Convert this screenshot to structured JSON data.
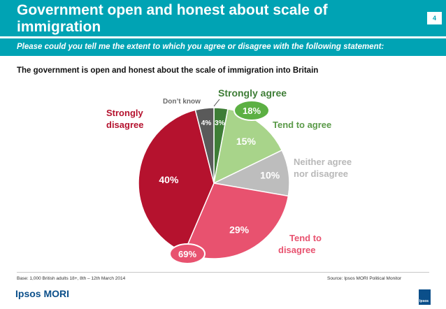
{
  "header": {
    "title": "Government open and honest about scale of immigration",
    "page_number": "4",
    "question": "Please could you tell me the extent to which you agree or disagree with the following statement:"
  },
  "statement": "The government is open and honest about the scale of immigration into Britain",
  "chart_data": {
    "type": "pie",
    "title": "The government is open and honest about the scale of immigration into Britain",
    "slices": [
      {
        "label": "Strongly agree",
        "value": 3,
        "value_label": "3%",
        "color": "#3e7d36"
      },
      {
        "label": "Tend to agree",
        "value": 15,
        "value_label": "15%",
        "color": "#a8d48a"
      },
      {
        "label": "Neither agree nor disagree",
        "value": 10,
        "value_label": "10%",
        "color": "#bdbdbd"
      },
      {
        "label": "Tend to disagree",
        "value": 29,
        "value_label": "29%",
        "color": "#e8526f"
      },
      {
        "label": "Strongly disagree",
        "value": 40,
        "value_label": "40%",
        "color": "#b5122e"
      },
      {
        "label": "Don't know",
        "value": 4,
        "value_label": "4%",
        "color": "#5a5a5a"
      }
    ],
    "category_labels": {
      "strongly_agree": "Strongly agree",
      "tend_to_agree": "Tend to agree",
      "neither": [
        "Neither agree",
        "nor disagree"
      ],
      "tend_to_disagree": [
        "Tend to",
        "disagree"
      ],
      "strongly_disagree": [
        "Strongly",
        "disagree"
      ],
      "dont_know": "Don’t know"
    },
    "annotations": {
      "agree_total": "18%",
      "disagree_total": "69%"
    }
  },
  "footer": {
    "base": "Base: 1,000 British adults 18+, 8th – 12th March 2014",
    "source": "Source: Ipsos MORI Political Monitor",
    "logo": "Ipsos MORI",
    "logo_box": "Ipsos"
  }
}
